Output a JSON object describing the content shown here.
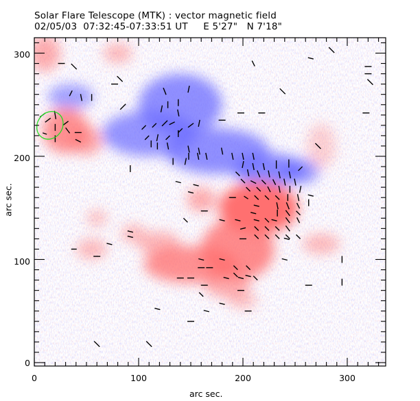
{
  "chart_data": {
    "type": "heatmap",
    "title": "Solar Flare Telescope (MTK) : vector magnetic field",
    "subtitle": "02/05/03  07:32:45-07:33:51 UT     E 5'27\"   N 7'18\"",
    "xlabel": "arc sec.",
    "ylabel": "arc sec.",
    "xlim": [
      0,
      337
    ],
    "ylim": [
      0,
      315
    ],
    "xticks": [
      "0",
      "100",
      "200",
      "300"
    ],
    "yticks": [
      "0",
      "100",
      "200",
      "300"
    ],
    "colors": {
      "positive": "#ff6f6f",
      "negative": "#6b6bff",
      "vector": "#000000",
      "region_outline": "#22dd22"
    },
    "negative_regions": [
      {
        "x": 35,
        "y": 258,
        "rx": 22,
        "ry": 12,
        "strength": 0.6
      },
      {
        "x": 140,
        "y": 250,
        "rx": 40,
        "ry": 30,
        "strength": 0.75
      },
      {
        "x": 110,
        "y": 222,
        "rx": 45,
        "ry": 22,
        "strength": 0.7
      },
      {
        "x": 175,
        "y": 205,
        "rx": 50,
        "ry": 22,
        "strength": 0.75
      },
      {
        "x": 225,
        "y": 187,
        "rx": 35,
        "ry": 16,
        "strength": 0.8
      },
      {
        "x": 255,
        "y": 185,
        "rx": 18,
        "ry": 12,
        "strength": 0.65
      }
    ],
    "positive_regions": [
      {
        "x": 10,
        "y": 300,
        "rx": 15,
        "ry": 18,
        "strength": 0.55
      },
      {
        "x": 80,
        "y": 300,
        "rx": 14,
        "ry": 10,
        "strength": 0.45
      },
      {
        "x": 30,
        "y": 225,
        "rx": 22,
        "ry": 22,
        "strength": 0.75
      },
      {
        "x": 50,
        "y": 215,
        "rx": 15,
        "ry": 14,
        "strength": 0.6
      },
      {
        "x": 215,
        "y": 150,
        "rx": 38,
        "ry": 25,
        "strength": 1.0
      },
      {
        "x": 160,
        "y": 158,
        "rx": 14,
        "ry": 12,
        "strength": 0.55
      },
      {
        "x": 195,
        "y": 110,
        "rx": 35,
        "ry": 30,
        "strength": 0.8
      },
      {
        "x": 150,
        "y": 95,
        "rx": 45,
        "ry": 18,
        "strength": 0.75
      },
      {
        "x": 120,
        "y": 115,
        "rx": 20,
        "ry": 12,
        "strength": 0.5
      },
      {
        "x": 55,
        "y": 110,
        "rx": 15,
        "ry": 10,
        "strength": 0.45
      },
      {
        "x": 95,
        "y": 125,
        "rx": 12,
        "ry": 9,
        "strength": 0.45
      },
      {
        "x": 185,
        "y": 75,
        "rx": 22,
        "ry": 12,
        "strength": 0.55
      },
      {
        "x": 275,
        "y": 115,
        "rx": 18,
        "ry": 10,
        "strength": 0.45
      },
      {
        "x": 275,
        "y": 210,
        "rx": 14,
        "ry": 22,
        "strength": 0.3
      },
      {
        "x": 60,
        "y": 140,
        "rx": 10,
        "ry": 8,
        "strength": 0.4
      },
      {
        "x": 200,
        "y": 60,
        "rx": 14,
        "ry": 8,
        "strength": 0.4
      }
    ],
    "vectors": [
      {
        "x": 26,
        "y": 290,
        "dx": 5,
        "dy": 0
      },
      {
        "x": 38,
        "y": 287,
        "dx": 4,
        "dy": 4
      },
      {
        "x": 77,
        "y": 270,
        "dx": 5,
        "dy": 0
      },
      {
        "x": 82,
        "y": 275,
        "dx": 4,
        "dy": 4
      },
      {
        "x": 45,
        "y": 257,
        "dx": 1,
        "dy": 5
      },
      {
        "x": 55,
        "y": 257,
        "dx": 0,
        "dy": 5
      },
      {
        "x": 35,
        "y": 261,
        "dx": -2,
        "dy": 4
      },
      {
        "x": 8,
        "y": 240,
        "dx": 4,
        "dy": -3
      },
      {
        "x": 13,
        "y": 235,
        "dx": 4,
        "dy": -3
      },
      {
        "x": 20,
        "y": 240,
        "dx": 1,
        "dy": 6
      },
      {
        "x": 20,
        "y": 228,
        "dx": 0,
        "dy": 5
      },
      {
        "x": 30,
        "y": 232,
        "dx": 4,
        "dy": -3
      },
      {
        "x": 32,
        "y": 225,
        "dx": 3,
        "dy": 4
      },
      {
        "x": 10,
        "y": 222,
        "dx": 3,
        "dy": 1
      },
      {
        "x": 20,
        "y": 217,
        "dx": 0,
        "dy": 5
      },
      {
        "x": 42,
        "y": 223,
        "dx": 5,
        "dy": 0
      },
      {
        "x": 42,
        "y": 215,
        "dx": 4,
        "dy": 2
      },
      {
        "x": 85,
        "y": 248,
        "dx": -4,
        "dy": 4
      },
      {
        "x": 125,
        "y": 263,
        "dx": 2,
        "dy": 5
      },
      {
        "x": 138,
        "y": 252,
        "dx": 0,
        "dy": 5
      },
      {
        "x": 148,
        "y": 265,
        "dx": -1,
        "dy": 5
      },
      {
        "x": 128,
        "y": 250,
        "dx": 0,
        "dy": 5
      },
      {
        "x": 138,
        "y": 242,
        "dx": 1,
        "dy": 5
      },
      {
        "x": 122,
        "y": 246,
        "dx": -1,
        "dy": 5
      },
      {
        "x": 105,
        "y": 228,
        "dx": 3,
        "dy": -3
      },
      {
        "x": 115,
        "y": 230,
        "dx": 3,
        "dy": -3
      },
      {
        "x": 125,
        "y": 232,
        "dx": 4,
        "dy": -4
      },
      {
        "x": 132,
        "y": 232,
        "dx": 4,
        "dy": -2
      },
      {
        "x": 138,
        "y": 222,
        "dx": 0,
        "dy": 5
      },
      {
        "x": 140,
        "y": 225,
        "dx": -3,
        "dy": 3
      },
      {
        "x": 158,
        "y": 232,
        "dx": -1,
        "dy": 5
      },
      {
        "x": 150,
        "y": 230,
        "dx": 4,
        "dy": -3
      },
      {
        "x": 108,
        "y": 218,
        "dx": 3,
        "dy": -3
      },
      {
        "x": 118,
        "y": 218,
        "dx": 1,
        "dy": -5
      },
      {
        "x": 128,
        "y": 218,
        "dx": 3,
        "dy": -3
      },
      {
        "x": 118,
        "y": 210,
        "dx": 0,
        "dy": 5
      },
      {
        "x": 128,
        "y": 210,
        "dx": 1,
        "dy": 5
      },
      {
        "x": 112,
        "y": 212,
        "dx": 0,
        "dy": 5
      },
      {
        "x": 148,
        "y": 200,
        "dx": 0,
        "dy": 5
      },
      {
        "x": 157,
        "y": 200,
        "dx": 1,
        "dy": 5
      },
      {
        "x": 165,
        "y": 200,
        "dx": 1,
        "dy": 5
      },
      {
        "x": 148,
        "y": 207,
        "dx": 1,
        "dy": 5
      },
      {
        "x": 158,
        "y": 205,
        "dx": 1,
        "dy": 5
      },
      {
        "x": 190,
        "y": 200,
        "dx": 1,
        "dy": 5
      },
      {
        "x": 200,
        "y": 200,
        "dx": 1,
        "dy": 5
      },
      {
        "x": 210,
        "y": 200,
        "dx": 1,
        "dy": 5
      },
      {
        "x": 180,
        "y": 205,
        "dx": 1,
        "dy": 5
      },
      {
        "x": 92,
        "y": 188,
        "dx": 0,
        "dy": -5
      },
      {
        "x": 133,
        "y": 195,
        "dx": 0,
        "dy": -5
      },
      {
        "x": 145,
        "y": 195,
        "dx": 1,
        "dy": -5
      },
      {
        "x": 200,
        "y": 192,
        "dx": -1,
        "dy": 5
      },
      {
        "x": 210,
        "y": 190,
        "dx": 1,
        "dy": 5
      },
      {
        "x": 220,
        "y": 190,
        "dx": 1,
        "dy": 5
      },
      {
        "x": 232,
        "y": 192,
        "dx": 0,
        "dy": 6
      },
      {
        "x": 244,
        "y": 193,
        "dx": 0,
        "dy": 6
      },
      {
        "x": 195,
        "y": 183,
        "dx": 3,
        "dy": 3
      },
      {
        "x": 205,
        "y": 184,
        "dx": 1,
        "dy": 5
      },
      {
        "x": 215,
        "y": 183,
        "dx": 2,
        "dy": 5
      },
      {
        "x": 225,
        "y": 183,
        "dx": 1,
        "dy": 5
      },
      {
        "x": 235,
        "y": 182,
        "dx": 1,
        "dy": 5
      },
      {
        "x": 245,
        "y": 182,
        "dx": 1,
        "dy": 5
      },
      {
        "x": 255,
        "y": 188,
        "dx": -3,
        "dy": 3
      },
      {
        "x": 200,
        "y": 176,
        "dx": 3,
        "dy": 3
      },
      {
        "x": 210,
        "y": 175,
        "dx": 4,
        "dy": 2
      },
      {
        "x": 220,
        "y": 175,
        "dx": 3,
        "dy": 3
      },
      {
        "x": 230,
        "y": 175,
        "dx": 2,
        "dy": 4
      },
      {
        "x": 240,
        "y": 175,
        "dx": 1,
        "dy": 5
      },
      {
        "x": 250,
        "y": 175,
        "dx": 1,
        "dy": 5
      },
      {
        "x": 205,
        "y": 168,
        "dx": 3,
        "dy": 3
      },
      {
        "x": 215,
        "y": 168,
        "dx": 3,
        "dy": 3
      },
      {
        "x": 225,
        "y": 168,
        "dx": 2,
        "dy": 4
      },
      {
        "x": 235,
        "y": 168,
        "dx": 1,
        "dy": 5
      },
      {
        "x": 245,
        "y": 168,
        "dx": 0,
        "dy": 5
      },
      {
        "x": 255,
        "y": 168,
        "dx": -1,
        "dy": 5
      },
      {
        "x": 203,
        "y": 160,
        "dx": 3,
        "dy": 2
      },
      {
        "x": 213,
        "y": 160,
        "dx": 3,
        "dy": 3
      },
      {
        "x": 223,
        "y": 160,
        "dx": 3,
        "dy": 3
      },
      {
        "x": 233,
        "y": 160,
        "dx": -3,
        "dy": -3
      },
      {
        "x": 243,
        "y": 160,
        "dx": 0,
        "dy": 5
      },
      {
        "x": 253,
        "y": 160,
        "dx": 1,
        "dy": 5
      },
      {
        "x": 190,
        "y": 160,
        "dx": 5,
        "dy": 0
      },
      {
        "x": 213,
        "y": 152,
        "dx": 4,
        "dy": 1
      },
      {
        "x": 233,
        "y": 152,
        "dx": 1,
        "dy": 5
      },
      {
        "x": 243,
        "y": 152,
        "dx": 2,
        "dy": 5
      },
      {
        "x": 253,
        "y": 152,
        "dx": 2,
        "dy": 4
      },
      {
        "x": 263,
        "y": 155,
        "dx": 0,
        "dy": 5
      },
      {
        "x": 210,
        "y": 145,
        "dx": 4,
        "dy": 1
      },
      {
        "x": 233,
        "y": 145,
        "dx": 0,
        "dy": 5
      },
      {
        "x": 243,
        "y": 145,
        "dx": 3,
        "dy": 4
      },
      {
        "x": 253,
        "y": 145,
        "dx": 3,
        "dy": 3
      },
      {
        "x": 195,
        "y": 138,
        "dx": 4,
        "dy": 1
      },
      {
        "x": 213,
        "y": 138,
        "dx": 4,
        "dy": 1
      },
      {
        "x": 223,
        "y": 138,
        "dx": -3,
        "dy": -3
      },
      {
        "x": 230,
        "y": 138,
        "dx": 4,
        "dy": 1
      },
      {
        "x": 243,
        "y": 138,
        "dx": 3,
        "dy": 4
      },
      {
        "x": 253,
        "y": 138,
        "dx": 2,
        "dy": 4
      },
      {
        "x": 200,
        "y": 130,
        "dx": 4,
        "dy": -1
      },
      {
        "x": 213,
        "y": 130,
        "dx": -3,
        "dy": -3
      },
      {
        "x": 223,
        "y": 130,
        "dx": -3,
        "dy": -3
      },
      {
        "x": 233,
        "y": 130,
        "dx": 3,
        "dy": 3
      },
      {
        "x": 243,
        "y": 130,
        "dx": 3,
        "dy": 4
      },
      {
        "x": 213,
        "y": 122,
        "dx": 3,
        "dy": 3
      },
      {
        "x": 223,
        "y": 122,
        "dx": 3,
        "dy": 3
      },
      {
        "x": 233,
        "y": 122,
        "dx": 3,
        "dy": 3
      },
      {
        "x": 243,
        "y": 122,
        "dx": 3,
        "dy": 3
      },
      {
        "x": 253,
        "y": 122,
        "dx": 3,
        "dy": 3
      },
      {
        "x": 163,
        "y": 147,
        "dx": 5,
        "dy": 0
      },
      {
        "x": 242,
        "y": 120,
        "dx": 4,
        "dy": 1
      },
      {
        "x": 92,
        "y": 127,
        "dx": 4,
        "dy": 1
      },
      {
        "x": 92,
        "y": 122,
        "dx": 4,
        "dy": 1
      },
      {
        "x": 72,
        "y": 115,
        "dx": 4,
        "dy": 1
      },
      {
        "x": 38,
        "y": 110,
        "dx": 4,
        "dy": 0
      },
      {
        "x": 60,
        "y": 103,
        "dx": 5,
        "dy": 0
      },
      {
        "x": 180,
        "y": 138,
        "dx": 4,
        "dy": 1
      },
      {
        "x": 145,
        "y": 138,
        "dx": 3,
        "dy": 3
      },
      {
        "x": 150,
        "y": 165,
        "dx": 4,
        "dy": 1
      },
      {
        "x": 155,
        "y": 172,
        "dx": 4,
        "dy": 1
      },
      {
        "x": 138,
        "y": 175,
        "dx": 4,
        "dy": 1
      },
      {
        "x": 200,
        "y": 120,
        "dx": 5,
        "dy": 0
      },
      {
        "x": 240,
        "y": 100,
        "dx": 4,
        "dy": 1
      },
      {
        "x": 160,
        "y": 100,
        "dx": 4,
        "dy": 1
      },
      {
        "x": 180,
        "y": 100,
        "dx": 4,
        "dy": 1
      },
      {
        "x": 160,
        "y": 92,
        "dx": 5,
        "dy": 0
      },
      {
        "x": 168,
        "y": 92,
        "dx": 5,
        "dy": 0
      },
      {
        "x": 193,
        "y": 92,
        "dx": 3,
        "dy": 3
      },
      {
        "x": 205,
        "y": 92,
        "dx": 3,
        "dy": 3
      },
      {
        "x": 193,
        "y": 85,
        "dx": 3,
        "dy": 3
      },
      {
        "x": 205,
        "y": 84,
        "dx": 4,
        "dy": 1
      },
      {
        "x": 140,
        "y": 82,
        "dx": 5,
        "dy": 0
      },
      {
        "x": 150,
        "y": 82,
        "dx": 5,
        "dy": 0
      },
      {
        "x": 184,
        "y": 82,
        "dx": 4,
        "dy": 1
      },
      {
        "x": 198,
        "y": 82,
        "dx": 4,
        "dy": 1
      },
      {
        "x": 212,
        "y": 82,
        "dx": 3,
        "dy": 3
      },
      {
        "x": 163,
        "y": 75,
        "dx": 5,
        "dy": 0
      },
      {
        "x": 198,
        "y": 70,
        "dx": 5,
        "dy": 0
      },
      {
        "x": 160,
        "y": 66,
        "dx": 3,
        "dy": 3
      },
      {
        "x": 263,
        "y": 75,
        "dx": 5,
        "dy": 0
      },
      {
        "x": 295,
        "y": 100,
        "dx": 0,
        "dy": 5
      },
      {
        "x": 295,
        "y": 78,
        "dx": 0,
        "dy": -5
      },
      {
        "x": 118,
        "y": 52,
        "dx": 4,
        "dy": 1
      },
      {
        "x": 205,
        "y": 50,
        "dx": 5,
        "dy": 0
      },
      {
        "x": 180,
        "y": 57,
        "dx": 4,
        "dy": 1
      },
      {
        "x": 150,
        "y": 40,
        "dx": 5,
        "dy": 0
      },
      {
        "x": 60,
        "y": 18,
        "dx": 4,
        "dy": 4
      },
      {
        "x": 110,
        "y": 18,
        "dx": 4,
        "dy": 4
      },
      {
        "x": 165,
        "y": 50,
        "dx": 4,
        "dy": 1
      },
      {
        "x": 265,
        "y": 295,
        "dx": 4,
        "dy": 1
      },
      {
        "x": 285,
        "y": 303,
        "dx": 4,
        "dy": 4
      },
      {
        "x": 320,
        "y": 287,
        "dx": 5,
        "dy": 0
      },
      {
        "x": 320,
        "y": 280,
        "dx": 5,
        "dy": 0
      },
      {
        "x": 322,
        "y": 272,
        "dx": 4,
        "dy": 4
      },
      {
        "x": 198,
        "y": 242,
        "dx": 5,
        "dy": 0
      },
      {
        "x": 218,
        "y": 242,
        "dx": 5,
        "dy": 0
      },
      {
        "x": 318,
        "y": 242,
        "dx": 5,
        "dy": 0
      },
      {
        "x": 238,
        "y": 263,
        "dx": 4,
        "dy": 4
      },
      {
        "x": 210,
        "y": 290,
        "dx": 2,
        "dy": 4
      },
      {
        "x": 180,
        "y": 235,
        "dx": 5,
        "dy": 0
      },
      {
        "x": 272,
        "y": 210,
        "dx": 4,
        "dy": 4
      },
      {
        "x": 265,
        "y": 162,
        "dx": 4,
        "dy": 1
      }
    ],
    "highlight_region": {
      "x": 15,
      "y": 230,
      "rx": 12,
      "ry": 14,
      "label": ""
    }
  }
}
